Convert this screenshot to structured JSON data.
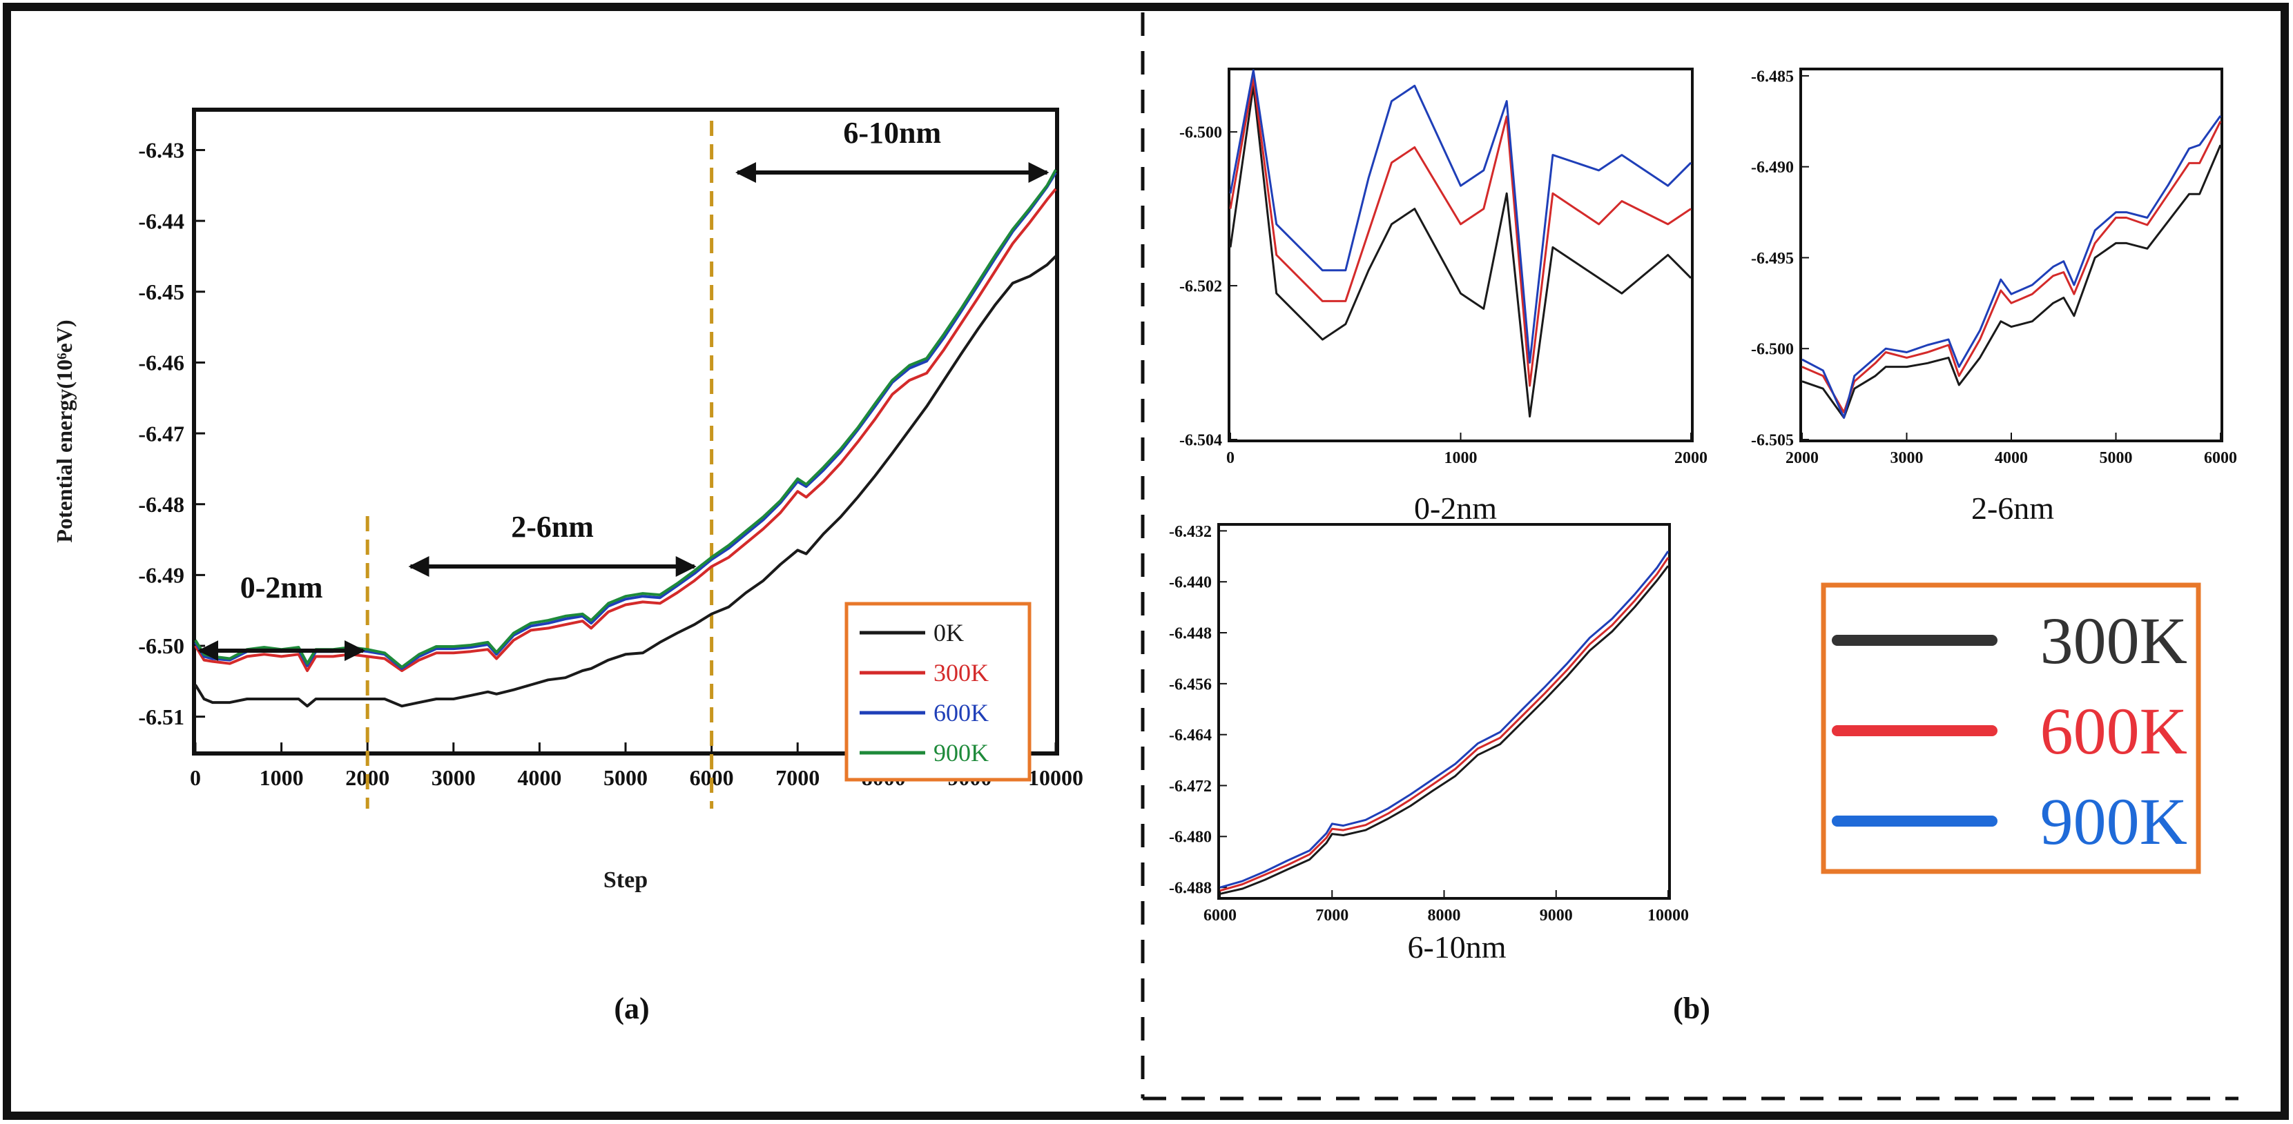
{
  "colors": {
    "black": "#1a1a1a",
    "red": "#d42a2a",
    "blue": "#1f3fb8",
    "green": "#1e8a3a",
    "gold": "#c8961e",
    "orange": "#e8782a",
    "legend_b_black": "#333333",
    "legend_b_red": "#e8333a",
    "legend_b_blue": "#1f6ad8"
  },
  "panel_labels": {
    "a": "(a)",
    "b": "(b)"
  },
  "chart_data": [
    {
      "id": "main",
      "type": "line",
      "xlabel": "Step",
      "ylabel": "Potential energy(10⁶eV)",
      "xlim": [
        0,
        10000
      ],
      "ylim": [
        -6.515,
        -6.4245
      ],
      "xticks": [
        0,
        1000,
        2000,
        3000,
        4000,
        5000,
        6000,
        7000,
        8000,
        9000,
        10000
      ],
      "yticks": [
        -6.51,
        -6.5,
        -6.49,
        -6.48,
        -6.47,
        -6.46,
        -6.45,
        -6.44,
        -6.43
      ],
      "ytick_labels": [
        "-6.51",
        "-6.50",
        "-6.49",
        "-6.48",
        "-6.47",
        "-6.46",
        "-6.45",
        "-6.44",
        "-6.43"
      ],
      "x": [
        0,
        100,
        200,
        400,
        600,
        800,
        1000,
        1200,
        1300,
        1400,
        1600,
        1800,
        2000,
        2200,
        2400,
        2600,
        2800,
        3000,
        3200,
        3400,
        3500,
        3700,
        3900,
        4100,
        4300,
        4500,
        4600,
        4800,
        5000,
        5200,
        5400,
        5600,
        5800,
        6000,
        6200,
        6400,
        6600,
        6800,
        7000,
        7100,
        7300,
        7500,
        7700,
        7900,
        8100,
        8300,
        8500,
        8700,
        8900,
        9100,
        9300,
        9500,
        9700,
        9900,
        10000
      ],
      "series": [
        {
          "name": "0K",
          "color_key": "black",
          "values": [
            -6.5055,
            -6.5075,
            -6.508,
            -6.508,
            -6.5075,
            -6.5075,
            -6.5075,
            -6.5075,
            -6.5085,
            -6.5075,
            -6.5075,
            -6.5075,
            -6.5075,
            -6.5075,
            -6.5085,
            -6.508,
            -6.5075,
            -6.5075,
            -6.507,
            -6.5065,
            -6.5068,
            -6.5062,
            -6.5055,
            -6.5048,
            -6.5045,
            -6.5035,
            -6.5032,
            -6.502,
            -6.5012,
            -6.501,
            -6.4995,
            -6.4982,
            -6.497,
            -6.4955,
            -6.4945,
            -6.4925,
            -6.4908,
            -6.4885,
            -6.4865,
            -6.487,
            -6.4842,
            -6.4818,
            -6.479,
            -6.476,
            -6.4728,
            -6.4695,
            -6.4662,
            -6.4625,
            -6.4588,
            -6.4552,
            -6.4518,
            -6.4488,
            -6.4478,
            -6.4462,
            -6.445
          ]
        },
        {
          "name": "300K",
          "color_key": "red",
          "values": [
            -6.5,
            -6.502,
            -6.5022,
            -6.5025,
            -6.5015,
            -6.5012,
            -6.5015,
            -6.5012,
            -6.5035,
            -6.5015,
            -6.5015,
            -6.5012,
            -6.5015,
            -6.5018,
            -6.5035,
            -6.502,
            -6.501,
            -6.501,
            -6.5008,
            -6.5005,
            -6.5018,
            -6.4992,
            -6.4978,
            -6.4975,
            -6.497,
            -6.4965,
            -6.4975,
            -6.4952,
            -6.4942,
            -6.4938,
            -6.494,
            -6.4925,
            -6.4908,
            -6.4888,
            -6.4875,
            -6.4855,
            -6.4835,
            -6.4812,
            -6.4782,
            -6.479,
            -6.4768,
            -6.4742,
            -6.4712,
            -6.468,
            -6.4645,
            -6.4625,
            -6.4615,
            -6.4582,
            -6.4545,
            -6.4508,
            -6.447,
            -6.4432,
            -6.4402,
            -6.437,
            -6.4355
          ]
        },
        {
          "name": "600K",
          "color_key": "blue",
          "values": [
            -6.4995,
            -6.5015,
            -6.5018,
            -6.502,
            -6.5008,
            -6.5005,
            -6.5008,
            -6.5005,
            -6.5028,
            -6.5008,
            -6.5008,
            -6.5005,
            -6.5008,
            -6.5012,
            -6.5032,
            -6.5015,
            -6.5004,
            -6.5004,
            -6.5002,
            -6.4998,
            -6.5012,
            -6.4985,
            -6.4972,
            -6.4968,
            -6.4962,
            -6.4958,
            -6.4968,
            -6.4944,
            -6.4934,
            -6.493,
            -6.4932,
            -6.4915,
            -6.4898,
            -6.4878,
            -6.4862,
            -6.4842,
            -6.4822,
            -6.4798,
            -6.4768,
            -6.4775,
            -6.4752,
            -6.4726,
            -6.4695,
            -6.4662,
            -6.4628,
            -6.4608,
            -6.4598,
            -6.4565,
            -6.4528,
            -6.449,
            -6.4452,
            -6.4415,
            -6.4385,
            -6.4352,
            -6.4332
          ]
        },
        {
          "name": "900K",
          "color_key": "green",
          "values": [
            -6.4992,
            -6.5012,
            -6.5015,
            -6.5018,
            -6.5005,
            -6.5002,
            -6.5005,
            -6.5002,
            -6.5025,
            -6.5005,
            -6.5005,
            -6.5002,
            -6.5005,
            -6.501,
            -6.503,
            -6.5012,
            -6.5001,
            -6.5001,
            -6.4999,
            -6.4995,
            -6.5009,
            -6.4982,
            -6.4968,
            -6.4964,
            -6.4958,
            -6.4955,
            -6.4964,
            -6.494,
            -6.493,
            -6.4926,
            -6.4928,
            -6.4912,
            -6.4894,
            -6.4875,
            -6.4858,
            -6.4838,
            -6.4818,
            -6.4795,
            -6.4764,
            -6.4772,
            -6.4748,
            -6.4722,
            -6.4692,
            -6.4658,
            -6.4625,
            -6.4604,
            -6.4594,
            -6.456,
            -6.4524,
            -6.4486,
            -6.4448,
            -6.4412,
            -6.4382,
            -6.435,
            -6.4328
          ]
        }
      ],
      "legend": [
        "0K",
        "300K",
        "600K",
        "900K"
      ],
      "annotations": {
        "dividers_x": [
          2000,
          6000
        ],
        "ranges": [
          {
            "label": "0-2nm",
            "from": 50,
            "to": 1950
          },
          {
            "label": "2-6nm",
            "from": 2500,
            "to": 5800
          },
          {
            "label": "6-10nm",
            "from": 6300,
            "to": 9900
          }
        ]
      }
    },
    {
      "id": "inset-0-2nm",
      "type": "line",
      "caption": "0-2nm",
      "xlim": [
        0,
        2000
      ],
      "ylim": [
        -6.504,
        -6.4992
      ],
      "xticks": [
        0,
        1000,
        2000
      ],
      "yticks": [
        -6.504,
        -6.502,
        -6.5
      ],
      "ytick_labels": [
        "-6.504",
        "-6.502",
        "-6.500"
      ],
      "x": [
        0,
        100,
        200,
        400,
        500,
        600,
        700,
        800,
        1000,
        1100,
        1200,
        1300,
        1400,
        1600,
        1700,
        1900,
        2000
      ],
      "series": [
        {
          "name": "300K",
          "color_key": "black",
          "values": [
            -6.5015,
            -6.4994,
            -6.5021,
            -6.5027,
            -6.5025,
            -6.5018,
            -6.5012,
            -6.501,
            -6.5021,
            -6.5023,
            -6.5008,
            -6.5037,
            -6.5015,
            -6.5019,
            -6.5021,
            -6.5016,
            -6.5019
          ]
        },
        {
          "name": "600K",
          "color_key": "red",
          "values": [
            -6.501,
            -6.4993,
            -6.5016,
            -6.5022,
            -6.5022,
            -6.5013,
            -6.5004,
            -6.5002,
            -6.5012,
            -6.501,
            -6.4998,
            -6.5033,
            -6.5008,
            -6.5012,
            -6.5009,
            -6.5012,
            -6.501
          ]
        },
        {
          "name": "900K",
          "color_key": "blue",
          "values": [
            -6.5008,
            -6.4992,
            -6.5012,
            -6.5018,
            -6.5018,
            -6.5006,
            -6.4996,
            -6.4994,
            -6.5007,
            -6.5005,
            -6.4996,
            -6.503,
            -6.5003,
            -6.5005,
            -6.5003,
            -6.5007,
            -6.5004
          ]
        }
      ]
    },
    {
      "id": "inset-2-6nm",
      "type": "line",
      "caption": "2-6nm",
      "xlim": [
        2000,
        6000
      ],
      "ylim": [
        -6.505,
        -6.4847
      ],
      "xticks": [
        2000,
        3000,
        4000,
        5000,
        6000
      ],
      "yticks": [
        -6.505,
        -6.5,
        -6.495,
        -6.49,
        -6.485
      ],
      "ytick_labels": [
        "-6.505",
        "-6.500",
        "-6.495",
        "-6.490",
        "-6.485"
      ],
      "x": [
        2000,
        2200,
        2400,
        2500,
        2700,
        2800,
        3000,
        3200,
        3400,
        3500,
        3700,
        3900,
        4000,
        4200,
        4400,
        4500,
        4600,
        4800,
        5000,
        5100,
        5300,
        5500,
        5700,
        5800,
        6000
      ],
      "series": [
        {
          "name": "300K",
          "color_key": "black",
          "values": [
            -6.5018,
            -6.5022,
            -6.5038,
            -6.5022,
            -6.5015,
            -6.501,
            -6.501,
            -6.5008,
            -6.5005,
            -6.502,
            -6.5005,
            -6.4985,
            -6.4988,
            -6.4985,
            -6.4975,
            -6.4972,
            -6.4982,
            -6.495,
            -6.4942,
            -6.4942,
            -6.4945,
            -6.493,
            -6.4915,
            -6.4915,
            -6.4888
          ]
        },
        {
          "name": "600K",
          "color_key": "red",
          "values": [
            -6.501,
            -6.5015,
            -6.5035,
            -6.5018,
            -6.5008,
            -6.5002,
            -6.5005,
            -6.5002,
            -6.4998,
            -6.5015,
            -6.4995,
            -6.4968,
            -6.4975,
            -6.497,
            -6.496,
            -6.4958,
            -6.497,
            -6.4942,
            -6.4928,
            -6.4928,
            -6.4932,
            -6.4915,
            -6.4898,
            -6.4898,
            -6.4875
          ]
        },
        {
          "name": "900K",
          "color_key": "blue",
          "values": [
            -6.5006,
            -6.5012,
            -6.5038,
            -6.5015,
            -6.5005,
            -6.5,
            -6.5002,
            -6.4998,
            -6.4995,
            -6.501,
            -6.499,
            -6.4962,
            -6.497,
            -6.4965,
            -6.4955,
            -6.4952,
            -6.4965,
            -6.4935,
            -6.4925,
            -6.4925,
            -6.4928,
            -6.491,
            -6.489,
            -6.4888,
            -6.4872
          ]
        }
      ]
    },
    {
      "id": "inset-6-10nm",
      "type": "line",
      "caption": "6-10nm",
      "xlim": [
        6000,
        10000
      ],
      "ylim": [
        -6.4895,
        -6.4312
      ],
      "xticks": [
        6000,
        7000,
        8000,
        9000,
        10000
      ],
      "yticks": [
        -6.488,
        -6.48,
        -6.472,
        -6.464,
        -6.456,
        -6.448,
        -6.44,
        -6.432
      ],
      "ytick_labels": [
        "-6.488",
        "-6.480",
        "-6.472",
        "-6.464",
        "-6.456",
        "-6.448",
        "-6.440",
        "-6.432"
      ],
      "x": [
        6000,
        6200,
        6400,
        6600,
        6800,
        6950,
        7000,
        7100,
        7300,
        7500,
        7700,
        7900,
        8100,
        8300,
        8500,
        8700,
        8900,
        9100,
        9300,
        9500,
        9700,
        9900,
        10000
      ],
      "series": [
        {
          "name": "300K",
          "color_key": "black",
          "values": [
            -6.489,
            -6.4882,
            -6.4868,
            -6.4852,
            -6.4836,
            -6.481,
            -6.4796,
            -6.4798,
            -6.479,
            -6.4772,
            -6.4752,
            -6.4728,
            -6.4705,
            -6.4672,
            -6.4655,
            -6.462,
            -6.4585,
            -6.4548,
            -6.4508,
            -6.4478,
            -6.444,
            -6.4398,
            -6.4375
          ]
        },
        {
          "name": "600K",
          "color_key": "red",
          "values": [
            -6.4885,
            -6.4875,
            -6.486,
            -6.4845,
            -6.4828,
            -6.4802,
            -6.4788,
            -6.479,
            -6.4782,
            -6.4764,
            -6.4742,
            -6.4718,
            -6.4694,
            -6.4662,
            -6.4645,
            -6.461,
            -6.4575,
            -6.4538,
            -6.4498,
            -6.4468,
            -6.443,
            -6.4388,
            -6.4362
          ]
        },
        {
          "name": "900K",
          "color_key": "blue",
          "values": [
            -6.488,
            -6.487,
            -6.4855,
            -6.4838,
            -6.4822,
            -6.4795,
            -6.478,
            -6.4783,
            -6.4774,
            -6.4756,
            -6.4734,
            -6.471,
            -6.4686,
            -6.4654,
            -6.4636,
            -6.46,
            -6.4565,
            -6.4528,
            -6.4488,
            -6.4458,
            -6.442,
            -6.4378,
            -6.4352
          ]
        }
      ]
    }
  ],
  "legend_b": [
    {
      "label": "300K",
      "color_key": "legend_b_black"
    },
    {
      "label": "600K",
      "color_key": "legend_b_red"
    },
    {
      "label": "900K",
      "color_key": "legend_b_blue"
    }
  ]
}
